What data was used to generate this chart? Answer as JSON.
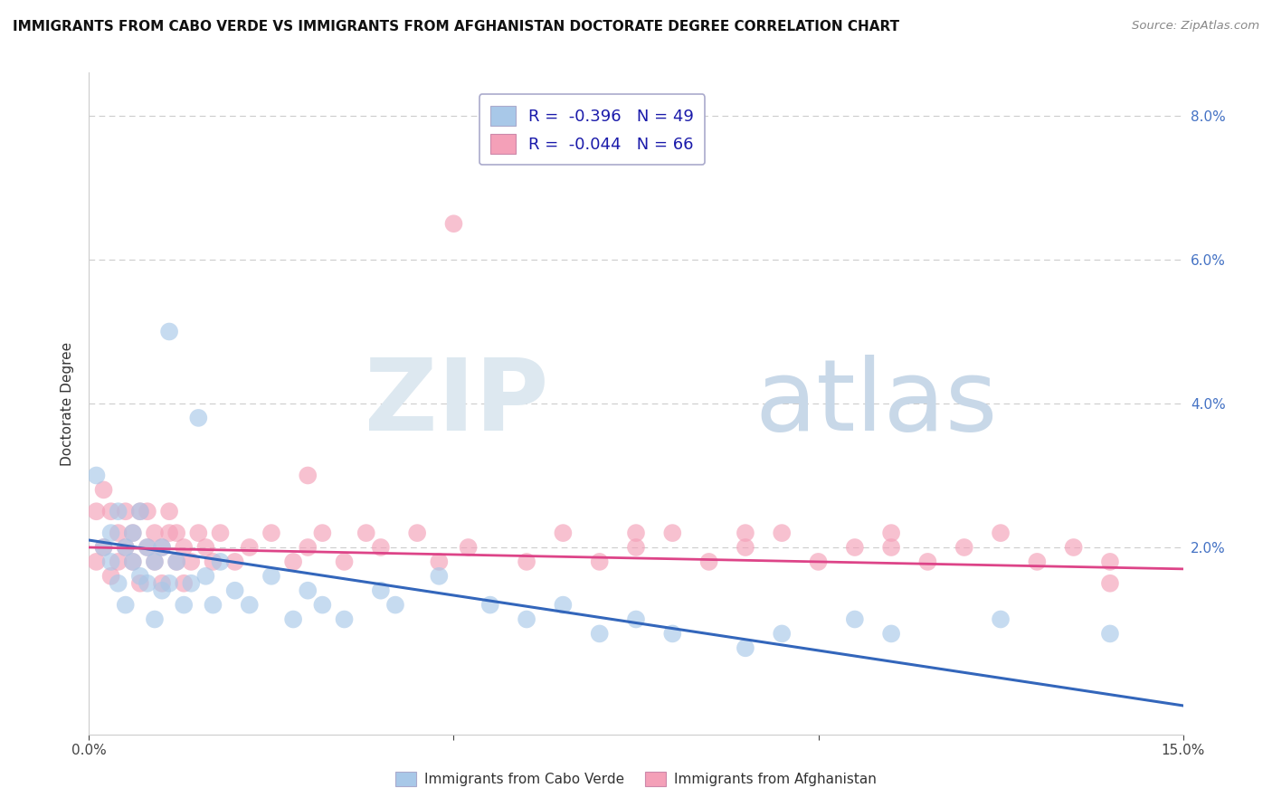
{
  "title": "IMMIGRANTS FROM CABO VERDE VS IMMIGRANTS FROM AFGHANISTAN DOCTORATE DEGREE CORRELATION CHART",
  "source": "Source: ZipAtlas.com",
  "ylabel": "Doctorate Degree",
  "xmin": 0.0,
  "xmax": 0.15,
  "ymin": -0.006,
  "ymax": 0.086,
  "blue_color": "#a8c8e8",
  "pink_color": "#f4a0b8",
  "blue_line_color": "#3366bb",
  "pink_line_color": "#dd4488",
  "legend_label_blue": "Immigrants from Cabo Verde",
  "legend_label_pink": "Immigrants from Afghanistan",
  "watermark_zip": "ZIP",
  "watermark_atlas": "atlas",
  "cabo_verde_x": [
    0.001,
    0.002,
    0.003,
    0.003,
    0.004,
    0.004,
    0.005,
    0.005,
    0.006,
    0.006,
    0.007,
    0.007,
    0.008,
    0.008,
    0.009,
    0.009,
    0.01,
    0.01,
    0.011,
    0.011,
    0.012,
    0.013,
    0.014,
    0.015,
    0.016,
    0.017,
    0.018,
    0.02,
    0.022,
    0.025,
    0.028,
    0.03,
    0.032,
    0.035,
    0.04,
    0.042,
    0.048,
    0.055,
    0.06,
    0.065,
    0.07,
    0.075,
    0.08,
    0.09,
    0.095,
    0.105,
    0.11,
    0.125,
    0.14
  ],
  "cabo_verde_y": [
    0.03,
    0.02,
    0.022,
    0.018,
    0.025,
    0.015,
    0.02,
    0.012,
    0.018,
    0.022,
    0.016,
    0.025,
    0.02,
    0.015,
    0.018,
    0.01,
    0.014,
    0.02,
    0.05,
    0.015,
    0.018,
    0.012,
    0.015,
    0.038,
    0.016,
    0.012,
    0.018,
    0.014,
    0.012,
    0.016,
    0.01,
    0.014,
    0.012,
    0.01,
    0.014,
    0.012,
    0.016,
    0.012,
    0.01,
    0.012,
    0.008,
    0.01,
    0.008,
    0.006,
    0.008,
    0.01,
    0.008,
    0.01,
    0.008
  ],
  "afghanistan_x": [
    0.001,
    0.001,
    0.002,
    0.002,
    0.003,
    0.003,
    0.004,
    0.004,
    0.005,
    0.005,
    0.006,
    0.006,
    0.007,
    0.007,
    0.008,
    0.008,
    0.009,
    0.009,
    0.01,
    0.01,
    0.011,
    0.011,
    0.012,
    0.012,
    0.013,
    0.013,
    0.014,
    0.015,
    0.016,
    0.017,
    0.018,
    0.02,
    0.022,
    0.025,
    0.028,
    0.03,
    0.032,
    0.035,
    0.038,
    0.04,
    0.045,
    0.048,
    0.052,
    0.06,
    0.065,
    0.07,
    0.075,
    0.08,
    0.085,
    0.09,
    0.095,
    0.1,
    0.105,
    0.11,
    0.115,
    0.12,
    0.125,
    0.13,
    0.135,
    0.14,
    0.05,
    0.03,
    0.075,
    0.09,
    0.11,
    0.14
  ],
  "afghanistan_y": [
    0.025,
    0.018,
    0.028,
    0.02,
    0.025,
    0.016,
    0.022,
    0.018,
    0.02,
    0.025,
    0.018,
    0.022,
    0.025,
    0.015,
    0.02,
    0.025,
    0.018,
    0.022,
    0.02,
    0.015,
    0.022,
    0.025,
    0.018,
    0.022,
    0.02,
    0.015,
    0.018,
    0.022,
    0.02,
    0.018,
    0.022,
    0.018,
    0.02,
    0.022,
    0.018,
    0.02,
    0.022,
    0.018,
    0.022,
    0.02,
    0.022,
    0.018,
    0.02,
    0.018,
    0.022,
    0.018,
    0.02,
    0.022,
    0.018,
    0.02,
    0.022,
    0.018,
    0.02,
    0.022,
    0.018,
    0.02,
    0.022,
    0.018,
    0.02,
    0.018,
    0.065,
    0.03,
    0.022,
    0.022,
    0.02,
    0.015
  ],
  "cabo_trend_x0": 0.0,
  "cabo_trend_y0": 0.021,
  "cabo_trend_x1": 0.15,
  "cabo_trend_y1": -0.002,
  "afg_trend_x0": 0.0,
  "afg_trend_y0": 0.02,
  "afg_trend_x1": 0.15,
  "afg_trend_y1": 0.017
}
